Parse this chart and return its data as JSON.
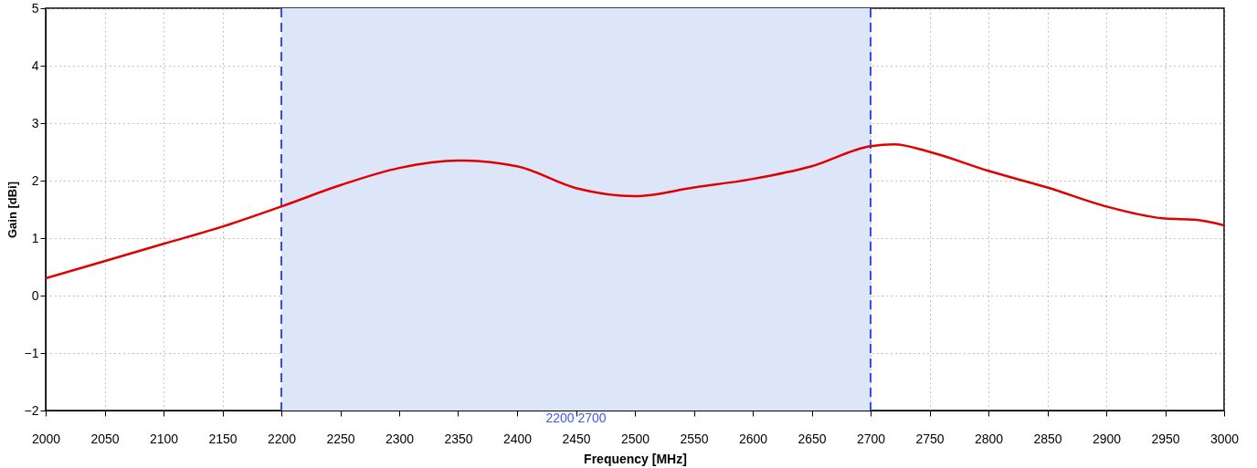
{
  "chart_data": {
    "type": "line",
    "xlabel": "Frequency [MHz]",
    "ylabel": "Gain [dBi]",
    "x": [
      2000,
      2050,
      2100,
      2150,
      2200,
      2250,
      2300,
      2350,
      2400,
      2450,
      2500,
      2550,
      2600,
      2650,
      2700,
      2720,
      2750,
      2800,
      2850,
      2900,
      2950,
      2975,
      3000
    ],
    "series": [
      {
        "color": "#e00000",
        "values": [
          0.3,
          0.6,
          0.9,
          1.2,
          1.55,
          1.92,
          2.22,
          2.35,
          2.25,
          1.87,
          1.73,
          1.88,
          2.03,
          2.25,
          2.6,
          2.63,
          2.5,
          2.17,
          1.88,
          1.55,
          1.34,
          1.32,
          1.22
        ]
      }
    ],
    "xlim": [
      2000,
      3000
    ],
    "xticks": [
      2000,
      2050,
      2100,
      2150,
      2200,
      2250,
      2300,
      2350,
      2400,
      2450,
      2500,
      2550,
      2600,
      2650,
      2700,
      2750,
      2800,
      2850,
      2900,
      2950,
      3000
    ],
    "ylim": [
      -2,
      5
    ],
    "yticks": [
      -2,
      -1,
      0,
      1,
      2,
      3,
      4,
      5
    ],
    "bands": [
      {
        "axis": "x",
        "from": 2200,
        "to": 2700,
        "label": "2200  2700",
        "color": "#dde6f8"
      }
    ],
    "grid": true,
    "line_style": "solid",
    "marker": "none"
  }
}
